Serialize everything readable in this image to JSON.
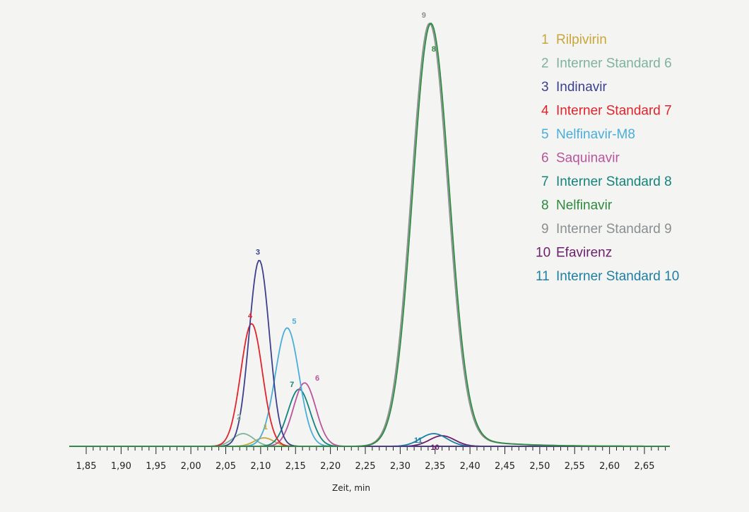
{
  "chart_data": {
    "type": "line",
    "xlabel": "Zeit, min",
    "xlim": [
      1.85,
      2.68
    ],
    "ylim": [
      0,
      1.0
    ],
    "x_ticks": [
      "1,85",
      "1,90",
      "1,95",
      "2,00",
      "2,05",
      "2,10",
      "2,15",
      "2,20",
      "2,25",
      "2,30",
      "2,35",
      "2,40",
      "2,45",
      "2,50",
      "2,55",
      "2,60",
      "2,65"
    ],
    "x_tick_values": [
      1.85,
      1.9,
      1.95,
      2.0,
      2.05,
      2.1,
      2.15,
      2.2,
      2.25,
      2.3,
      2.35,
      2.4,
      2.45,
      2.5,
      2.55,
      2.6,
      2.65
    ],
    "legend_position": "top-right",
    "series": [
      {
        "id": "1",
        "name": "Rilpivirin",
        "color": "#c9a63a",
        "peak_x": 2.105,
        "height": 0.02,
        "sigma": 0.014
      },
      {
        "id": "2",
        "name": "Interner Standard 6",
        "color": "#7fb39b",
        "peak_x": 2.075,
        "height": 0.03,
        "sigma": 0.015
      },
      {
        "id": "3",
        "name": "Indinavir",
        "color": "#3b3f8c",
        "peak_x": 2.098,
        "height": 0.44,
        "sigma": 0.0145
      },
      {
        "id": "4",
        "name": "Interner Standard 7",
        "color": "#e0242b",
        "peak_x": 2.087,
        "height": 0.29,
        "sigma": 0.0155
      },
      {
        "id": "5",
        "name": "Nelfinavir-M8",
        "color": "#4aaed8",
        "peak_x": 2.138,
        "height": 0.28,
        "sigma": 0.017
      },
      {
        "id": "6",
        "name": "Saquinavir",
        "color": "#b9559c",
        "peak_x": 2.163,
        "height": 0.15,
        "sigma": 0.016
      },
      {
        "id": "7",
        "name": "Interner Standard 8",
        "color": "#14837c",
        "peak_x": 2.155,
        "height": 0.135,
        "sigma": 0.016
      },
      {
        "id": "8",
        "name": "Nelfinavir",
        "color": "#2d8a3e",
        "peak_x": 2.344,
        "height": 1.0,
        "sigma": 0.026
      },
      {
        "id": "9",
        "name": "Interner Standard 9",
        "color": "#8a8f91",
        "peak_x": 2.342,
        "height": 1.0,
        "sigma": 0.026
      },
      {
        "id": "10",
        "name": "Efavirenz",
        "color": "#6b1f6b",
        "peak_x": 2.36,
        "height": 0.025,
        "sigma": 0.018
      },
      {
        "id": "11",
        "name": "Interner Standard 10",
        "color": "#1d7fa3",
        "peak_x": 2.348,
        "height": 0.03,
        "sigma": 0.019
      }
    ]
  }
}
